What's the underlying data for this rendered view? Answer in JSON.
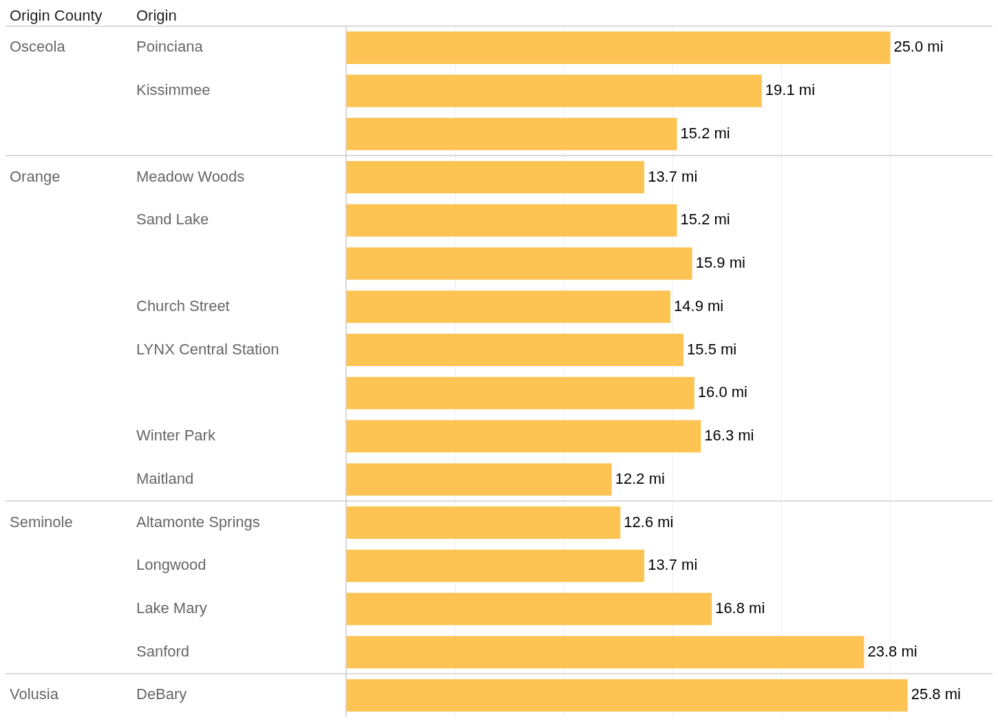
{
  "chart_data": {
    "type": "bar",
    "orientation": "horizontal",
    "ylabel": "Origin",
    "categories": [
      "Poinciana",
      "Kissimmee",
      null,
      "Meadow Woods",
      "Sand Lake",
      null,
      "Church Street",
      "LYNX Central Station",
      null,
      "Winter Park",
      "Maitland",
      "Altamonte Springs",
      "Longwood",
      "Lake Mary",
      "Sanford",
      "DeBary"
    ],
    "values": [
      25.0,
      19.1,
      15.2,
      13.7,
      15.2,
      15.9,
      14.9,
      15.5,
      16.0,
      16.3,
      12.2,
      12.6,
      13.7,
      16.8,
      23.8,
      25.8
    ],
    "value_labels": [
      "25.0 mi",
      "19.1 mi",
      "15.2 mi",
      "13.7 mi",
      "15.2 mi",
      "15.9 mi",
      "14.9 mi",
      "15.5 mi",
      "16.0 mi",
      "16.3 mi",
      "12.2 mi",
      "12.6 mi",
      "13.7 mi",
      "16.8 mi",
      "23.8 mi",
      "25.8 mi"
    ],
    "color": "#fdc453",
    "xlim": [
      0,
      29.7
    ],
    "xticks": [
      {
        "value": 0,
        "label": null
      },
      {
        "value": 5,
        "label": null
      },
      {
        "value": 10,
        "label": null
      },
      {
        "value": 15,
        "label": null
      },
      {
        "value": 20,
        "label": null
      },
      {
        "value": 25,
        "label": null
      }
    ],
    "grid": "x",
    "tick_labels": "y",
    "y2_categories": [
      "Osceola",
      null,
      null,
      "Orange",
      null,
      null,
      null,
      null,
      null,
      null,
      null,
      "Seminole",
      null,
      null,
      null,
      "Volusia"
    ],
    "annotations": [
      "Origin County"
    ]
  }
}
